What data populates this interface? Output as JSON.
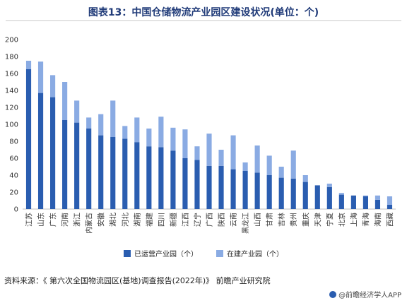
{
  "title": "图表13：中国仓储物流产业园区建设状况(单位：个)",
  "source": "资料来源：《 第六次全国物流园区(基地)调查报告(2022年)》 前瞻产业研究院",
  "brand": "@前瞻经济学人APP",
  "colors": {
    "operating": "#2a5db0",
    "building": "#8aabe3",
    "axis": "#bfbfbf",
    "text": "#333333"
  },
  "chart_data": {
    "type": "bar",
    "stacked": true,
    "categories": [
      "江苏",
      "山东",
      "广东",
      "河南",
      "浙江",
      "内蒙古",
      "安徽",
      "湖北",
      "河北",
      "湖南",
      "福建",
      "四川",
      "新疆",
      "江西",
      "辽宁",
      "广西",
      "陕西",
      "云南",
      "黑龙江",
      "山西",
      "甘肃",
      "吉林",
      "贵州",
      "重庆",
      "天津",
      "宁夏",
      "北京",
      "上海",
      "青海",
      "海南",
      "西藏"
    ],
    "series": [
      {
        "name": "已运营产业园（个）",
        "values": [
          165,
          137,
          132,
          105,
          102,
          95,
          87,
          85,
          83,
          79,
          74,
          73,
          69,
          60,
          58,
          51,
          51,
          47,
          45,
          43,
          40,
          37,
          36,
          32,
          28,
          26,
          17,
          16,
          15,
          11,
          5
        ]
      },
      {
        "name": "在建产业园（个）",
        "values": [
          10,
          37,
          26,
          45,
          26,
          13,
          25,
          43,
          15,
          29,
          21,
          36,
          27,
          34,
          16,
          38,
          19,
          40,
          10,
          32,
          23,
          13,
          33,
          8,
          0,
          4,
          2,
          0,
          1,
          5,
          10
        ]
      }
    ],
    "ylim": [
      0,
      200
    ],
    "yticks": [
      0,
      20,
      40,
      60,
      80,
      100,
      120,
      140,
      160,
      180,
      200
    ],
    "grid": false,
    "legend_position": "bottom"
  }
}
